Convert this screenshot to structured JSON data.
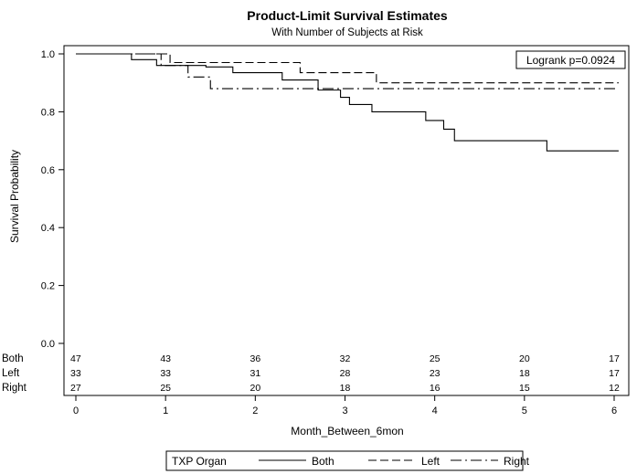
{
  "chart_data": {
    "type": "line",
    "title": "Product-Limit Survival Estimates",
    "subtitle": "With Number of Subjects at Risk",
    "xlabel": "Month_Between_6mon",
    "ylabel": "Survival Probability",
    "xlim": [
      0,
      6
    ],
    "ylim": [
      0,
      1
    ],
    "xticks": [
      0,
      1,
      2,
      3,
      4,
      5,
      6
    ],
    "yticks": [
      "0.0",
      "0.2",
      "0.4",
      "0.6",
      "0.8",
      "1.0"
    ],
    "grid": false,
    "annotation": "Logrank p=0.0924",
    "legend": {
      "title": "TXP Organ",
      "position": "bottom",
      "entries": [
        "Both",
        "Left",
        "Right"
      ]
    },
    "series": [
      {
        "name": "Both",
        "dash": "solid",
        "steps": [
          [
            0,
            1.0
          ],
          [
            0.62,
            0.98
          ],
          [
            0.9,
            0.96
          ],
          [
            1.45,
            0.955
          ],
          [
            1.75,
            0.935
          ],
          [
            2.3,
            0.91
          ],
          [
            2.7,
            0.875
          ],
          [
            2.95,
            0.85
          ],
          [
            3.05,
            0.825
          ],
          [
            3.3,
            0.8
          ],
          [
            3.9,
            0.77
          ],
          [
            4.1,
            0.74
          ],
          [
            4.22,
            0.7
          ],
          [
            5.25,
            0.665
          ],
          [
            6.05,
            0.665
          ]
        ]
      },
      {
        "name": "Left",
        "dash": "dashed",
        "steps": [
          [
            0,
            1.0
          ],
          [
            1.05,
            0.97
          ],
          [
            2.5,
            0.935
          ],
          [
            3.35,
            0.9
          ],
          [
            6.05,
            0.9
          ]
        ]
      },
      {
        "name": "Right",
        "dash": "dashdot",
        "steps": [
          [
            0,
            1.0
          ],
          [
            0.95,
            0.96
          ],
          [
            1.25,
            0.92
          ],
          [
            1.5,
            0.88
          ],
          [
            6.05,
            0.88
          ]
        ]
      }
    ],
    "risk_table": {
      "times": [
        0,
        1,
        2,
        3,
        4,
        5,
        6
      ],
      "rows": [
        {
          "label": "Both",
          "counts": [
            47,
            43,
            36,
            32,
            25,
            20,
            17
          ]
        },
        {
          "label": "Left",
          "counts": [
            33,
            33,
            31,
            28,
            23,
            18,
            17
          ]
        },
        {
          "label": "Right",
          "counts": [
            27,
            25,
            20,
            18,
            16,
            15,
            12
          ]
        }
      ]
    }
  }
}
